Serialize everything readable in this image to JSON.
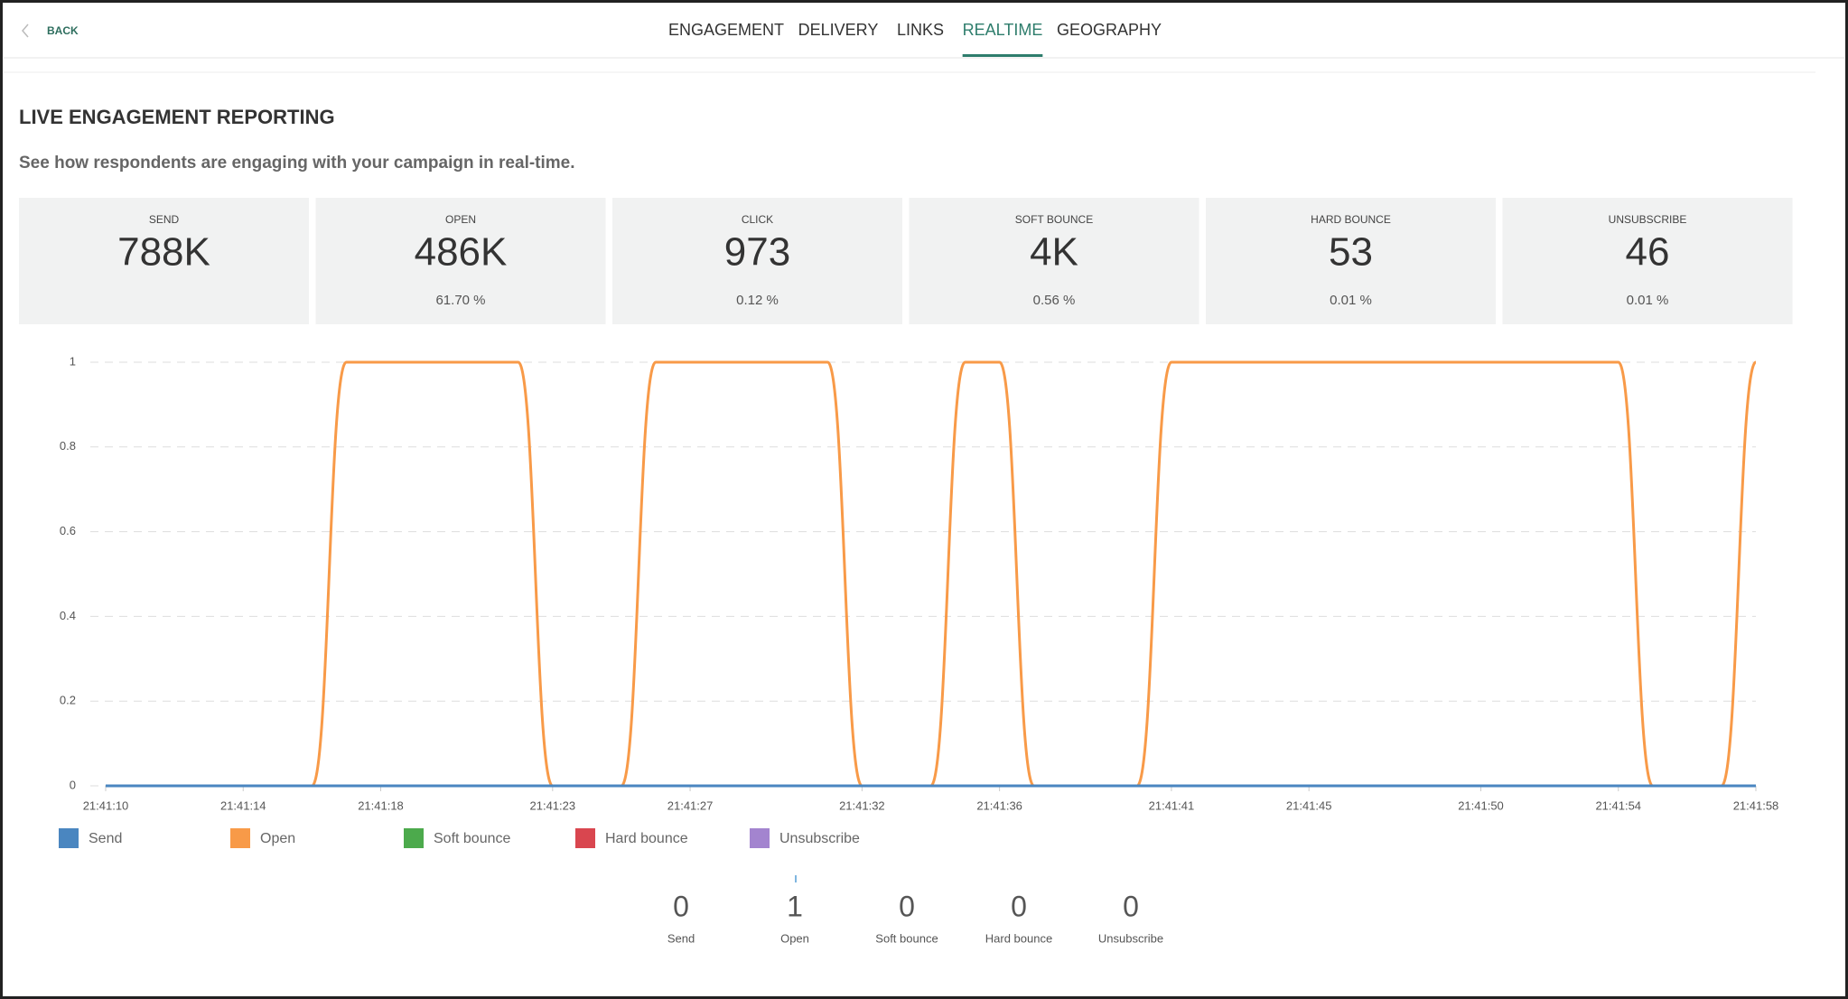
{
  "nav": {
    "back": "BACK",
    "tabs": [
      "ENGAGEMENT",
      "DELIVERY",
      "LINKS",
      "REALTIME",
      "GEOGRAPHY"
    ],
    "active_tab": 3
  },
  "header": {
    "title": "LIVE ENGAGEMENT REPORTING",
    "subtitle": "See how respondents are engaging with your campaign in real-time."
  },
  "stats": [
    {
      "label": "SEND",
      "value": "788K"
    },
    {
      "label": "OPEN",
      "value": "486K",
      "percent": "61.70 %"
    },
    {
      "label": "CLICK",
      "value": "973",
      "percent": "0.12 %"
    },
    {
      "label": "SOFT BOUNCE",
      "value": "4K",
      "percent": "0.56 %"
    },
    {
      "label": "HARD BOUNCE",
      "value": "53",
      "percent": "0.01 %"
    },
    {
      "label": "UNSUBSCRIBE",
      "value": "46",
      "percent": "0.01 %"
    }
  ],
  "chart_data": {
    "type": "line",
    "x": [
      "21:41:10",
      "21:41:11",
      "21:41:12",
      "21:41:13",
      "21:41:14",
      "21:41:15",
      "21:41:16",
      "21:41:17",
      "21:41:18",
      "21:41:19",
      "21:41:20",
      "21:41:21",
      "21:41:22",
      "21:41:23",
      "21:41:24",
      "21:41:25",
      "21:41:26",
      "21:41:27",
      "21:41:28",
      "21:41:29",
      "21:41:30",
      "21:41:31",
      "21:41:32",
      "21:41:33",
      "21:41:34",
      "21:41:35",
      "21:41:36",
      "21:41:37",
      "21:41:38",
      "21:41:39",
      "21:41:40",
      "21:41:41",
      "21:41:42",
      "21:41:43",
      "21:41:44",
      "21:41:45",
      "21:41:46",
      "21:41:47",
      "21:41:48",
      "21:41:49",
      "21:41:50",
      "21:41:51",
      "21:41:52",
      "21:41:53",
      "21:41:54",
      "21:41:55",
      "21:41:56",
      "21:41:57",
      "21:41:58"
    ],
    "series": [
      {
        "name": "Send",
        "color": "#4a86c0",
        "values": [
          0,
          0,
          0,
          0,
          0,
          0,
          0,
          0,
          0,
          0,
          0,
          0,
          0,
          0,
          0,
          0,
          0,
          0,
          0,
          0,
          0,
          0,
          0,
          0,
          0,
          0,
          0,
          0,
          0,
          0,
          0,
          0,
          0,
          0,
          0,
          0,
          0,
          0,
          0,
          0,
          0,
          0,
          0,
          0,
          0,
          0,
          0,
          0,
          0
        ]
      },
      {
        "name": "Open",
        "color": "#f89a48",
        "values": [
          0,
          0,
          0,
          0,
          0,
          0,
          0,
          1,
          1,
          1,
          1,
          1,
          1,
          0,
          0,
          0,
          1,
          1,
          1,
          1,
          1,
          1,
          0,
          0,
          0,
          1,
          1,
          0,
          0,
          0,
          0,
          1,
          1,
          1,
          1,
          1,
          1,
          1,
          1,
          1,
          1,
          1,
          1,
          1,
          1,
          0,
          0,
          0,
          1
        ]
      },
      {
        "name": "Soft bounce",
        "color": "#4caa4c",
        "values": [
          0,
          0,
          0,
          0,
          0,
          0,
          0,
          0,
          0,
          0,
          0,
          0,
          0,
          0,
          0,
          0,
          0,
          0,
          0,
          0,
          0,
          0,
          0,
          0,
          0,
          0,
          0,
          0,
          0,
          0,
          0,
          0,
          0,
          0,
          0,
          0,
          0,
          0,
          0,
          0,
          0,
          0,
          0,
          0,
          0,
          0,
          0,
          0,
          0
        ]
      },
      {
        "name": "Hard bounce",
        "color": "#d9464f",
        "values": [
          0,
          0,
          0,
          0,
          0,
          0,
          0,
          0,
          0,
          0,
          0,
          0,
          0,
          0,
          0,
          0,
          0,
          0,
          0,
          0,
          0,
          0,
          0,
          0,
          0,
          0,
          0,
          0,
          0,
          0,
          0,
          0,
          0,
          0,
          0,
          0,
          0,
          0,
          0,
          0,
          0,
          0,
          0,
          0,
          0,
          0,
          0,
          0,
          0
        ]
      },
      {
        "name": "Unsubscribe",
        "color": "#a384cf",
        "values": [
          0,
          0,
          0,
          0,
          0,
          0,
          0,
          0,
          0,
          0,
          0,
          0,
          0,
          0,
          0,
          0,
          0,
          0,
          0,
          0,
          0,
          0,
          0,
          0,
          0,
          0,
          0,
          0,
          0,
          0,
          0,
          0,
          0,
          0,
          0,
          0,
          0,
          0,
          0,
          0,
          0,
          0,
          0,
          0,
          0,
          0,
          0,
          0,
          0
        ]
      }
    ],
    "ylim": [
      0,
      1
    ],
    "yticks": [
      0,
      0.2,
      0.4,
      0.6,
      0.8,
      1
    ],
    "xticks": [
      "21:41:10",
      "21:41:14",
      "21:41:18",
      "21:41:23",
      "21:41:27",
      "21:41:32",
      "21:41:36",
      "21:41:41",
      "21:41:45",
      "21:41:50",
      "21:41:54",
      "21:41:58"
    ],
    "grid": true,
    "legend": "bottom-left"
  },
  "live_counts": [
    {
      "value": 0,
      "label": "Send"
    },
    {
      "value": 1,
      "label": "Open"
    },
    {
      "value": 0,
      "label": "Soft bounce"
    },
    {
      "value": 0,
      "label": "Hard bounce"
    },
    {
      "value": 0,
      "label": "Unsubscribe"
    }
  ]
}
